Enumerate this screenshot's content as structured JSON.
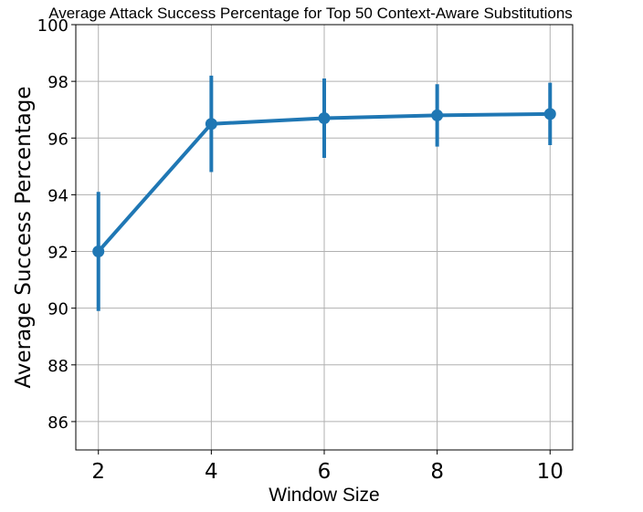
{
  "chart_data": {
    "type": "line",
    "title": "Average Attack Success Percentage for Top 50 Context-Aware Substitutions",
    "xlabel": "Window Size",
    "ylabel": "Average Success Percentage",
    "x": [
      2,
      4,
      6,
      8,
      10
    ],
    "series": [
      {
        "values": [
          92.0,
          96.5,
          96.7,
          96.8,
          96.85
        ],
        "error_low": [
          89.9,
          94.8,
          95.3,
          95.7,
          95.75
        ],
        "error_high": [
          94.1,
          98.2,
          98.1,
          97.9,
          97.95
        ],
        "color": "#1f77b4"
      }
    ],
    "xticks": [
      "2",
      "4",
      "6",
      "8",
      "10"
    ],
    "yticks": [
      "86",
      "88",
      "90",
      "92",
      "94",
      "96",
      "98",
      "100"
    ],
    "xlim": [
      1.6,
      10.4
    ],
    "ylim": [
      85,
      100
    ],
    "grid": true,
    "legend": "none"
  }
}
